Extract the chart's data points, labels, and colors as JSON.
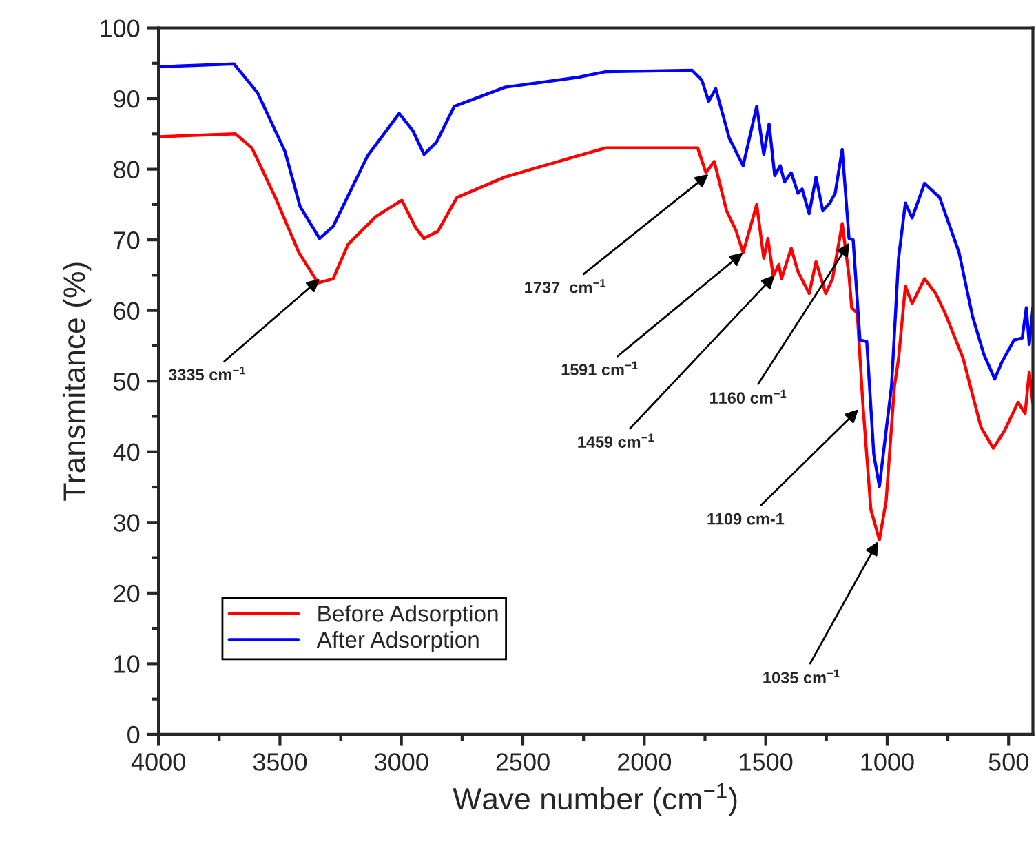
{
  "chart_data": {
    "type": "line",
    "xlabel": "Wave number (cm$^{−1}$)",
    "ylabel": "Transmitance (%)",
    "xlim": [
      4000,
      400
    ],
    "xticks": [
      4000,
      3500,
      3000,
      2500,
      2000,
      1500,
      1000,
      500
    ],
    "ylim": [
      0,
      100
    ],
    "yticks": [
      0,
      10,
      20,
      30,
      40,
      50,
      60,
      70,
      80,
      90,
      100
    ],
    "grid": false,
    "legend": "bottom left",
    "marker": "none",
    "line_style": "solid",
    "series": [
      {
        "name": "Before Adsorption",
        "color": "#ff0000",
        "x": [
          4000,
          3683,
          3615,
          3519,
          3422,
          3343,
          3281,
          3219,
          3105,
          2998,
          2941,
          2907,
          2850,
          2771,
          2573,
          2273,
          2160,
          1780,
          1746,
          1712,
          1661,
          1622,
          1593,
          1537,
          1508,
          1491,
          1469,
          1446,
          1435,
          1395,
          1367,
          1321,
          1293,
          1253,
          1225,
          1185,
          1157,
          1146,
          1123,
          1100,
          1067,
          1032,
          1004,
          970,
          953,
          925,
          897,
          846,
          800,
          761,
          687,
          648,
          614,
          563,
          518,
          461,
          432,
          421,
          415,
          400
        ],
        "values": [
          84.6,
          85.0,
          83.0,
          76.0,
          68.2,
          63.9,
          64.5,
          69.4,
          73.3,
          75.6,
          71.7,
          70.2,
          71.2,
          76.0,
          78.9,
          81.9,
          83.0,
          83.0,
          79.5,
          81.1,
          74.1,
          71.3,
          68.2,
          75.0,
          67.4,
          70.2,
          64.9,
          66.5,
          64.5,
          68.8,
          65.5,
          62.4,
          66.9,
          62.4,
          64.5,
          72.3,
          64.9,
          60.4,
          59.6,
          46.8,
          31.8,
          27.5,
          33.1,
          49.3,
          53.2,
          63.4,
          61.0,
          64.5,
          62.4,
          59.6,
          53.2,
          48.0,
          43.5,
          40.5,
          42.9,
          47.0,
          45.4,
          49.3,
          51.3,
          46.8
        ]
      },
      {
        "name": "After Adsorption",
        "color": "#0000ff",
        "x": [
          4000,
          3689,
          3592,
          3479,
          3417,
          3337,
          3281,
          3139,
          3009,
          2952,
          2907,
          2856,
          2782,
          2573,
          2273,
          2160,
          1803,
          1763,
          1735,
          1706,
          1650,
          1593,
          1537,
          1508,
          1486,
          1463,
          1440,
          1423,
          1395,
          1367,
          1350,
          1321,
          1293,
          1265,
          1236,
          1214,
          1185,
          1157,
          1140,
          1112,
          1084,
          1055,
          1032,
          982,
          953,
          925,
          897,
          846,
          784,
          704,
          648,
          602,
          557,
          529,
          478,
          444,
          427,
          415,
          400
        ],
        "values": [
          94.5,
          94.9,
          90.8,
          82.5,
          74.7,
          70.2,
          71.9,
          81.9,
          87.9,
          85.4,
          82.1,
          83.8,
          88.9,
          91.6,
          93.0,
          93.8,
          94.0,
          92.6,
          89.6,
          91.4,
          84.4,
          80.5,
          88.9,
          82.1,
          86.4,
          79.1,
          80.5,
          78.2,
          79.5,
          76.6,
          77.2,
          73.7,
          78.9,
          74.1,
          75.2,
          76.6,
          82.8,
          70.2,
          70.0,
          55.8,
          55.6,
          39.6,
          35.1,
          49.3,
          67.4,
          75.2,
          73.1,
          78.0,
          76.0,
          68.2,
          59.1,
          53.8,
          50.3,
          52.6,
          55.8,
          56.1,
          60.4,
          55.2,
          60.4
        ]
      }
    ],
    "annotations": [
      {
        "text": "3335 cm$^{−1}$",
        "x": 3335,
        "y": 64.5
      },
      {
        "text": "1737  cm$^{−1}$",
        "x": 1735,
        "y": 79.3
      },
      {
        "text": "1591 cm$^{−1}$",
        "x": 1593,
        "y": 68.2
      },
      {
        "text": "1459 cm$^{−1}$",
        "x": 1463,
        "y": 65.0
      },
      {
        "text": "1160 cm$^{−1}$",
        "x": 1155,
        "y": 69.6
      },
      {
        "text": "1109 cm-1",
        "x": 1118,
        "y": 46.0
      },
      {
        "text": "1035 cm$^{−1}$",
        "x": 1038,
        "y": 27.3
      }
    ]
  }
}
